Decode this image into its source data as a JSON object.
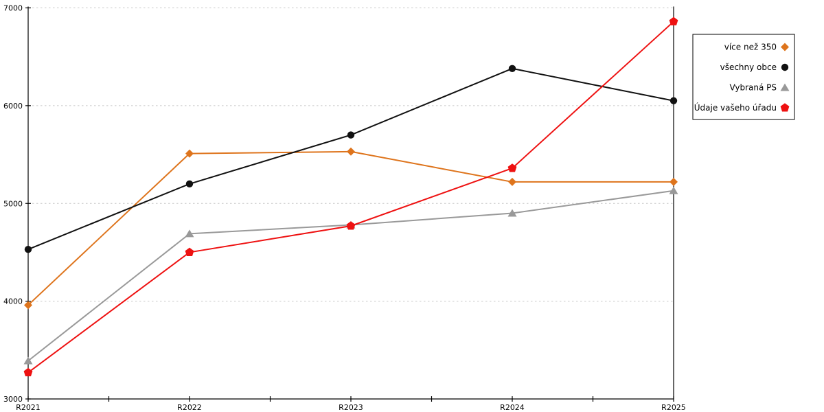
{
  "chart_data": {
    "type": "line",
    "title": "",
    "xlabel": "",
    "ylabel": "",
    "categories": [
      "R2021",
      "R2022",
      "R2023",
      "R2024",
      "R2025"
    ],
    "series": [
      {
        "name": "více než 350",
        "color": "#de741c",
        "marker": "diamond",
        "values": [
          3960,
          5510,
          5530,
          5220,
          5220
        ]
      },
      {
        "name": "všechny obce",
        "color": "#111111",
        "marker": "circle",
        "values": [
          4530,
          5200,
          5700,
          6380,
          6050
        ]
      },
      {
        "name": "Vybraná PS",
        "color": "#999999",
        "marker": "triangle-up",
        "values": [
          3390,
          4690,
          4780,
          4900,
          5130
        ]
      },
      {
        "name": "Údaje vašeho úřadu",
        "color": "#ee1111",
        "marker": "pentagon",
        "values": [
          3270,
          4500,
          4770,
          5360,
          6860
        ]
      }
    ],
    "ylim": [
      3000,
      7000
    ],
    "yticks": [
      3000,
      4000,
      5000,
      6000,
      7000
    ],
    "grid": "horizontal-dashed",
    "legend_position": "outside-right-top"
  },
  "colors": {
    "background": "#ffffff",
    "axis": "#000000",
    "gridline": "#c6c6c6",
    "legend_border": "#000000",
    "legend_background": "#ffffff"
  }
}
